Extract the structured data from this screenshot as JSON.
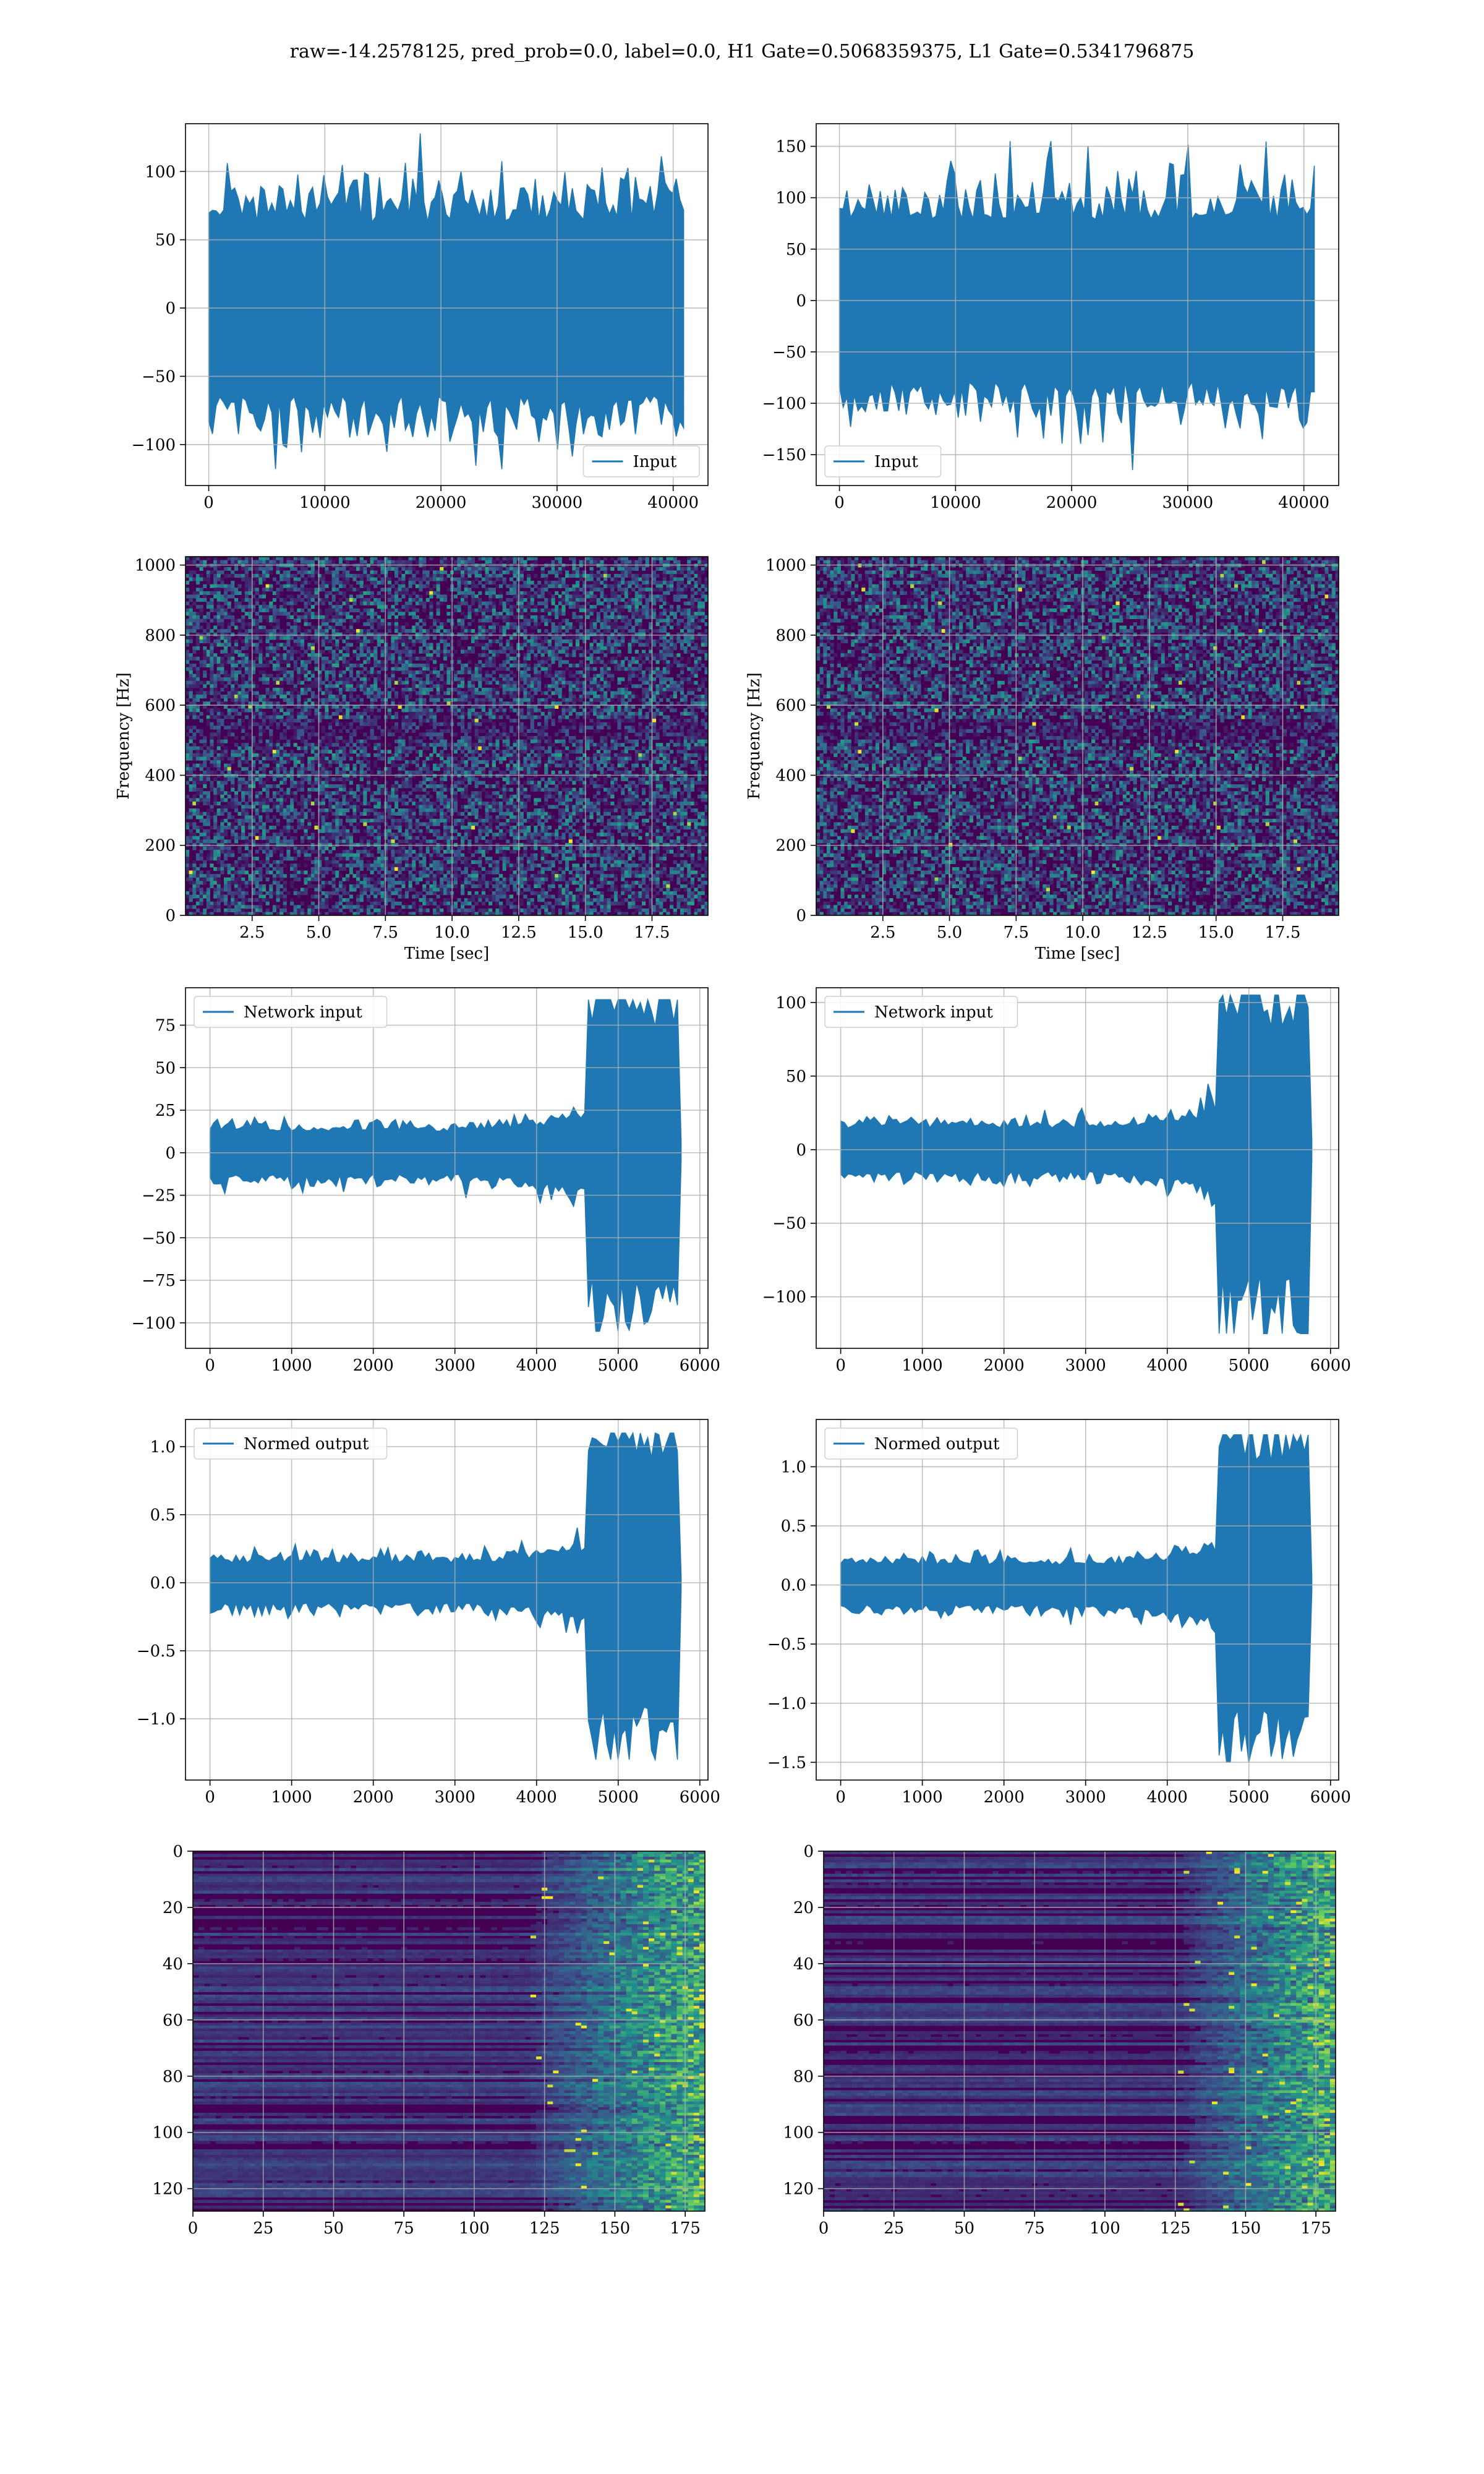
{
  "title": "raw=-14.2578125, pred_prob=0.0, label=0.0, H1 Gate=0.5068359375, L1 Gate=0.5341796875",
  "colors": {
    "line": "#1f77b4",
    "grid": "#b0b0b0",
    "viridis_dark": "#440154",
    "viridis_mid": "#21918c",
    "viridis_bright": "#fde725"
  },
  "chart_data": [
    {
      "id": "input-h1",
      "type": "line",
      "legend": "Input",
      "legend_loc": "lower right",
      "xlim": [
        -2000,
        43000
      ],
      "ylim": [
        -130,
        135
      ],
      "xticks": [
        0,
        10000,
        20000,
        30000,
        40000
      ],
      "yticks": [
        -100,
        -50,
        0,
        50,
        100
      ],
      "signal": {
        "n": 40960,
        "amp_core": 60,
        "amp_peak_max": 128,
        "amp_peak_min": -118,
        "profile": "stationary"
      },
      "grid": true
    },
    {
      "id": "input-l1",
      "type": "line",
      "legend": "Input",
      "legend_loc": "lower left",
      "xlim": [
        -2000,
        43000
      ],
      "ylim": [
        -180,
        172
      ],
      "xticks": [
        0,
        10000,
        20000,
        30000,
        40000
      ],
      "yticks": [
        -150,
        -100,
        -50,
        0,
        50,
        100,
        150
      ],
      "signal": {
        "n": 40960,
        "amp_core": 75,
        "amp_peak_max": 155,
        "amp_peak_min": -165,
        "profile": "stationary"
      },
      "grid": true
    },
    {
      "id": "spec-h1",
      "type": "heatmap",
      "ylabel": "Frequency [Hz]",
      "xlabel": "Time [sec]",
      "xlim": [
        0,
        19.6
      ],
      "ylim": [
        0,
        1024
      ],
      "xticks": [
        2.5,
        5.0,
        7.5,
        10.0,
        12.5,
        15.0,
        17.5
      ],
      "yticks": [
        0,
        200,
        400,
        600,
        800,
        1000
      ],
      "xtick_labels": [
        "2.5",
        "5.0",
        "7.5",
        "10.0",
        "12.5",
        "15.0",
        "17.5"
      ],
      "colormap": "viridis",
      "pattern": "noise",
      "grid": true
    },
    {
      "id": "spec-l1",
      "type": "heatmap",
      "ylabel": "Frequency [Hz]",
      "xlabel": "Time [sec]",
      "xlim": [
        0,
        19.6
      ],
      "ylim": [
        0,
        1024
      ],
      "xticks": [
        2.5,
        5.0,
        7.5,
        10.0,
        12.5,
        15.0,
        17.5
      ],
      "yticks": [
        0,
        200,
        400,
        600,
        800,
        1000
      ],
      "xtick_labels": [
        "2.5",
        "5.0",
        "7.5",
        "10.0",
        "12.5",
        "15.0",
        "17.5"
      ],
      "colormap": "viridis",
      "pattern": "noise",
      "grid": true
    },
    {
      "id": "netin-h1",
      "type": "line",
      "legend": "Network input",
      "legend_loc": "upper left",
      "xlim": [
        -300,
        6100
      ],
      "ylim": [
        -115,
        97
      ],
      "xticks": [
        0,
        1000,
        2000,
        3000,
        4000,
        5000,
        6000
      ],
      "yticks": [
        -100,
        -75,
        -50,
        -25,
        0,
        25,
        50,
        75
      ],
      "signal": {
        "n": 5800,
        "profile": "chirp",
        "base": 12,
        "burst_start": 4600,
        "burst_end": 5750,
        "burst_amp": 70,
        "end_x": 5800,
        "amp_peak_max": 90,
        "amp_peak_min": -105
      },
      "grid": true
    },
    {
      "id": "netin-l1",
      "type": "line",
      "legend": "Network input",
      "legend_loc": "upper left",
      "xlim": [
        -300,
        6100
      ],
      "ylim": [
        -135,
        110
      ],
      "xticks": [
        0,
        1000,
        2000,
        3000,
        4000,
        5000,
        6000
      ],
      "yticks": [
        -100,
        -50,
        0,
        50,
        100
      ],
      "signal": {
        "n": 5800,
        "profile": "chirp",
        "base": 14,
        "burst_start": 4600,
        "burst_end": 5750,
        "burst_amp": 80,
        "end_x": 5800,
        "amp_peak_max": 105,
        "amp_peak_min": -125
      },
      "grid": true
    },
    {
      "id": "norm-h1",
      "type": "line",
      "legend": "Normed output",
      "legend_loc": "upper left",
      "xlim": [
        -300,
        6100
      ],
      "ylim": [
        -1.45,
        1.2
      ],
      "xticks": [
        0,
        1000,
        2000,
        3000,
        4000,
        5000,
        6000
      ],
      "yticks": [
        -1.0,
        -0.5,
        0.0,
        0.5,
        1.0
      ],
      "ytick_labels": [
        "−1.0",
        "−0.5",
        "0.0",
        "0.5",
        "1.0"
      ],
      "signal": {
        "n": 5800,
        "profile": "chirp",
        "base": 0.14,
        "burst_start": 4600,
        "burst_end": 5750,
        "burst_amp": 0.85,
        "end_x": 5800,
        "amp_peak_max": 1.1,
        "amp_peak_min": -1.3
      },
      "grid": true
    },
    {
      "id": "norm-l1",
      "type": "line",
      "legend": "Normed output",
      "legend_loc": "upper left",
      "xlim": [
        -300,
        6100
      ],
      "ylim": [
        -1.65,
        1.4
      ],
      "xticks": [
        0,
        1000,
        2000,
        3000,
        4000,
        5000,
        6000
      ],
      "yticks": [
        -1.5,
        -1.0,
        -0.5,
        0.0,
        0.5,
        1.0
      ],
      "ytick_labels": [
        "−1.5",
        "−1.0",
        "−0.5",
        "0.0",
        "0.5",
        "1.0"
      ],
      "signal": {
        "n": 5800,
        "profile": "chirp",
        "base": 0.16,
        "burst_start": 4600,
        "burst_end": 5750,
        "burst_amp": 1.0,
        "end_x": 5800,
        "amp_peak_max": 1.27,
        "amp_peak_min": -1.5
      },
      "grid": true
    },
    {
      "id": "feat-h1",
      "type": "heatmap",
      "xlim": [
        0,
        182
      ],
      "ylim": [
        128,
        0
      ],
      "xticks": [
        0,
        25,
        50,
        75,
        100,
        125,
        150,
        175
      ],
      "yticks": [
        0,
        20,
        40,
        60,
        80,
        100,
        120
      ],
      "colormap": "viridis",
      "pattern": "features",
      "onset": 118,
      "grid": true
    },
    {
      "id": "feat-l1",
      "type": "heatmap",
      "xlim": [
        0,
        182
      ],
      "ylim": [
        128,
        0
      ],
      "xticks": [
        0,
        25,
        50,
        75,
        100,
        125,
        150,
        175
      ],
      "yticks": [
        0,
        20,
        40,
        60,
        80,
        100,
        120
      ],
      "colormap": "viridis",
      "pattern": "features",
      "onset": 125,
      "grid": true
    }
  ]
}
